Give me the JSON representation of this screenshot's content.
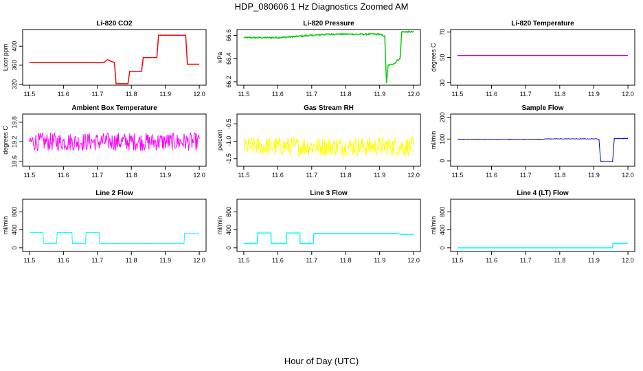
{
  "title": "HDP_080606  1 Hz Diagnostics Zoomed AM",
  "xlabel": "Hour of Day (UTC)",
  "chart_data": [
    {
      "type": "line",
      "title": "Li-820 CO2",
      "ylabel": "Licor ppm",
      "xlim": [
        11.48,
        12.02
      ],
      "ylim": [
        318,
        435
      ],
      "xticks": [
        "11.5",
        "11.6",
        "11.7",
        "11.8",
        "11.9",
        "12.0"
      ],
      "yticks": [
        "320",
        "360",
        "400"
      ],
      "ytick_values": [
        320,
        360,
        400
      ],
      "color": "#ff0000",
      "noise": 0,
      "series": [
        {
          "x": [
            11.5,
            11.72,
            11.73,
            11.74,
            11.75,
            11.755,
            11.79,
            11.795,
            11.83,
            11.835,
            11.875,
            11.88,
            11.96,
            11.965,
            12.0
          ],
          "y": [
            366,
            366,
            372,
            368,
            366,
            321,
            321,
            347,
            347,
            376,
            376,
            423,
            423,
            362,
            362
          ]
        }
      ]
    },
    {
      "type": "line",
      "title": "Li-820 Pressure",
      "ylabel": "kPa",
      "xlim": [
        11.48,
        12.02
      ],
      "ylim": [
        66.17,
        66.65
      ],
      "xticks": [
        "11.5",
        "11.6",
        "11.7",
        "11.8",
        "11.9",
        "12.0"
      ],
      "yticks": [
        "66.2",
        "66.4",
        "66.6"
      ],
      "ytick_values": [
        66.2,
        66.4,
        66.6
      ],
      "color": "#00cc00",
      "noise": 0.006,
      "series": [
        {
          "x": [
            11.5,
            11.6,
            11.7,
            11.75,
            11.8,
            11.9,
            11.915,
            11.92,
            11.925,
            11.935,
            11.945,
            11.95,
            11.96,
            11.965,
            12.0
          ],
          "y": [
            66.58,
            66.58,
            66.6,
            66.61,
            66.61,
            66.61,
            66.59,
            66.19,
            66.34,
            66.35,
            66.36,
            66.38,
            66.4,
            66.63,
            66.63
          ]
        }
      ]
    },
    {
      "type": "line",
      "title": "Li-820 Temperature",
      "ylabel": "degrees C",
      "xlim": [
        11.48,
        12.02
      ],
      "ylim": [
        28,
        72
      ],
      "xticks": [
        "11.5",
        "11.6",
        "11.7",
        "11.8",
        "11.9",
        "12.0"
      ],
      "yticks": [
        "30",
        "50",
        "70"
      ],
      "ytick_values": [
        30,
        50,
        70
      ],
      "color": "#cc00cc",
      "noise": 0,
      "series": [
        {
          "x": [
            11.5,
            12.0
          ],
          "y": [
            51.5,
            51.5
          ]
        }
      ]
    },
    {
      "type": "line",
      "title": "Ambient Box Temperature",
      "ylabel": "degrees C",
      "xlim": [
        11.48,
        12.02
      ],
      "ylim": [
        18.45,
        20.05
      ],
      "xticks": [
        "11.5",
        "11.6",
        "11.7",
        "11.8",
        "11.9",
        "12.0"
      ],
      "yticks": [
        "18.6",
        "19.2",
        "19.8"
      ],
      "ytick_values": [
        18.6,
        19.2,
        19.8
      ],
      "color": "#ff00ff",
      "noise": 0.28,
      "series": [
        {
          "x": [
            11.5,
            12.0
          ],
          "y": [
            19.2,
            19.2
          ]
        }
      ]
    },
    {
      "type": "line",
      "title": "Gas Stream RH",
      "ylabel": "percent",
      "xlim": [
        11.48,
        12.02
      ],
      "ylim": [
        -1.72,
        -0.22
      ],
      "xticks": [
        "11.5",
        "11.6",
        "11.7",
        "11.8",
        "11.9",
        "12.0"
      ],
      "yticks": [
        "-1.5",
        "-1.0",
        "-0.5"
      ],
      "ytick_values": [
        -1.5,
        -1.0,
        -0.5
      ],
      "color": "#ffff00",
      "noise": 0.28,
      "series": [
        {
          "x": [
            11.5,
            12.0
          ],
          "y": [
            -1.15,
            -1.15
          ]
        }
      ]
    },
    {
      "type": "line",
      "title": "Sample Flow",
      "ylabel": "ml/min",
      "xlim": [
        11.48,
        12.02
      ],
      "ylim": [
        -25,
        215
      ],
      "xticks": [
        "11.5",
        "11.6",
        "11.7",
        "11.8",
        "11.9",
        "12.0"
      ],
      "yticks": [
        "0",
        "100",
        "200"
      ],
      "ytick_values": [
        0,
        100,
        200
      ],
      "color": "#0000cc",
      "noise": 1.5,
      "series": [
        {
          "x": [
            11.5,
            11.75,
            11.76,
            11.915,
            11.92,
            11.955,
            11.96,
            12.0
          ],
          "y": [
            98,
            98,
            101,
            101,
            -3,
            -3,
            103,
            103
          ]
        }
      ]
    },
    {
      "type": "line",
      "title": "Line 2 Flow",
      "ylabel": "ml/min",
      "xlim": [
        11.48,
        12.02
      ],
      "ylim": [
        -80,
        1080
      ],
      "xticks": [
        "11.5",
        "11.6",
        "11.7",
        "11.8",
        "11.9",
        "12.0"
      ],
      "yticks": [
        "0",
        "400",
        "800"
      ],
      "ytick_values": [
        0,
        400,
        800
      ],
      "color": "#00ffff",
      "noise": 4,
      "series": [
        {
          "x": [
            11.5,
            11.54,
            11.541,
            11.58,
            11.581,
            11.625,
            11.626,
            11.665,
            11.666,
            11.705,
            11.706,
            11.955,
            11.956,
            12.0
          ],
          "y": [
            340,
            340,
            95,
            95,
            340,
            340,
            95,
            95,
            340,
            340,
            95,
            95,
            320,
            320
          ]
        }
      ]
    },
    {
      "type": "line",
      "title": "Line 3 Flow",
      "ylabel": "ml/min",
      "xlim": [
        11.48,
        12.02
      ],
      "ylim": [
        -80,
        1080
      ],
      "xticks": [
        "11.5",
        "11.6",
        "11.7",
        "11.8",
        "11.9",
        "12.0"
      ],
      "yticks": [
        "0",
        "400",
        "800"
      ],
      "ytick_values": [
        0,
        400,
        800
      ],
      "color": "#00ffff",
      "noise": 0,
      "series": [
        {
          "x": [
            11.5,
            11.54,
            11.541,
            11.58,
            11.581,
            11.625,
            11.626,
            11.665,
            11.666,
            11.705,
            11.706,
            11.955,
            11.96,
            12.0
          ],
          "y": [
            95,
            95,
            330,
            330,
            95,
            95,
            330,
            330,
            95,
            95,
            320,
            320,
            300,
            300
          ]
        }
      ]
    },
    {
      "type": "line",
      "title": "Line 4 (LT) Flow",
      "ylabel": "ml/min",
      "xlim": [
        11.48,
        12.02
      ],
      "ylim": [
        -80,
        1080
      ],
      "xticks": [
        "11.5",
        "11.6",
        "11.7",
        "11.8",
        "11.9",
        "12.0"
      ],
      "yticks": [
        "0",
        "400",
        "800"
      ],
      "ytick_values": [
        0,
        400,
        800
      ],
      "color": "#00ffff",
      "noise": 0,
      "series": [
        {
          "x": [
            11.5,
            11.955,
            11.956,
            12.0
          ],
          "y": [
            0,
            0,
            100,
            100
          ]
        }
      ]
    }
  ]
}
